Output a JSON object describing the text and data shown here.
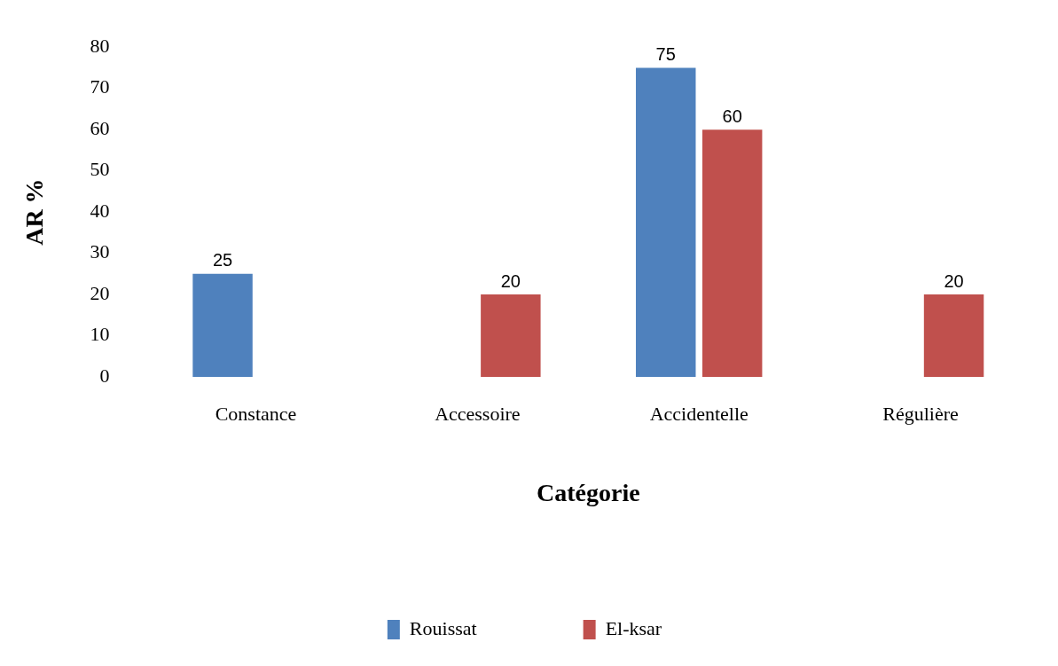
{
  "chart_data": {
    "type": "bar",
    "xlabel": "Catégorie",
    "ylabel": "AR %",
    "categories": [
      "Constance",
      "Accessoire",
      "Accidentelle",
      "Régulière"
    ],
    "series": [
      {
        "name": "Rouissat",
        "color": "#4f81bd",
        "values": [
          25,
          0,
          75,
          0
        ],
        "value_labels": [
          "25",
          null,
          "75",
          null
        ]
      },
      {
        "name": "El-ksar",
        "color": "#c0504d",
        "values": [
          0,
          20,
          60,
          20
        ],
        "value_labels": [
          null,
          "20",
          "60",
          "20"
        ]
      }
    ],
    "ylim": [
      0,
      80
    ],
    "yticks": [
      0,
      10,
      20,
      30,
      40,
      50,
      60,
      70,
      80
    ],
    "grid": false,
    "legend": "bottom"
  }
}
